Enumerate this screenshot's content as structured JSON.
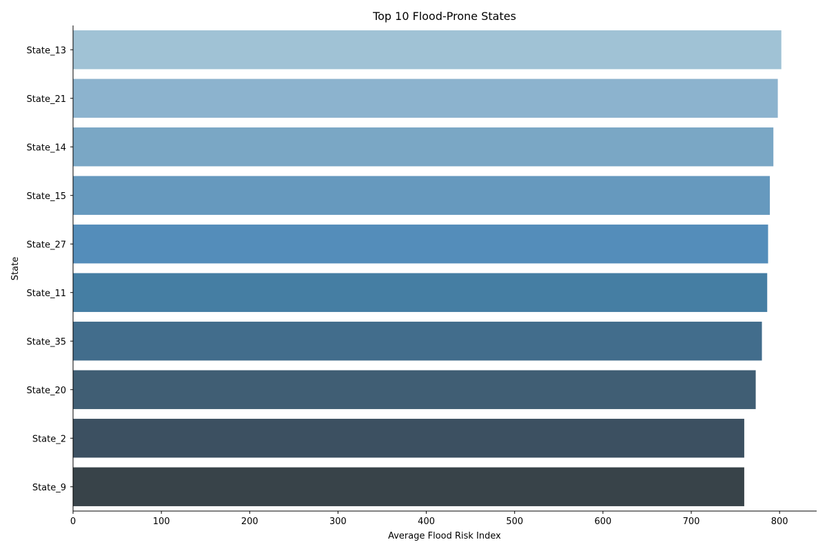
{
  "chart_data": {
    "type": "bar",
    "orientation": "horizontal",
    "title": "Top 10 Flood-Prone States",
    "xlabel": "Average Flood Risk Index",
    "ylabel": "State",
    "categories": [
      "State_13",
      "State_21",
      "State_14",
      "State_15",
      "State_27",
      "State_11",
      "State_35",
      "State_20",
      "State_2",
      "State_9"
    ],
    "values": [
      802,
      798,
      793,
      789,
      787,
      786,
      780,
      773,
      760,
      760
    ],
    "colors": [
      "#a0c2d5",
      "#8cb3ce",
      "#7aa7c5",
      "#6699be",
      "#548dba",
      "#457ea3",
      "#426d8c",
      "#405e74",
      "#3c5061",
      "#384349"
    ],
    "xlim": [
      0,
      842
    ],
    "xticks": [
      0,
      100,
      200,
      300,
      400,
      500,
      600,
      700,
      800
    ],
    "grid": false,
    "legend": "none"
  }
}
